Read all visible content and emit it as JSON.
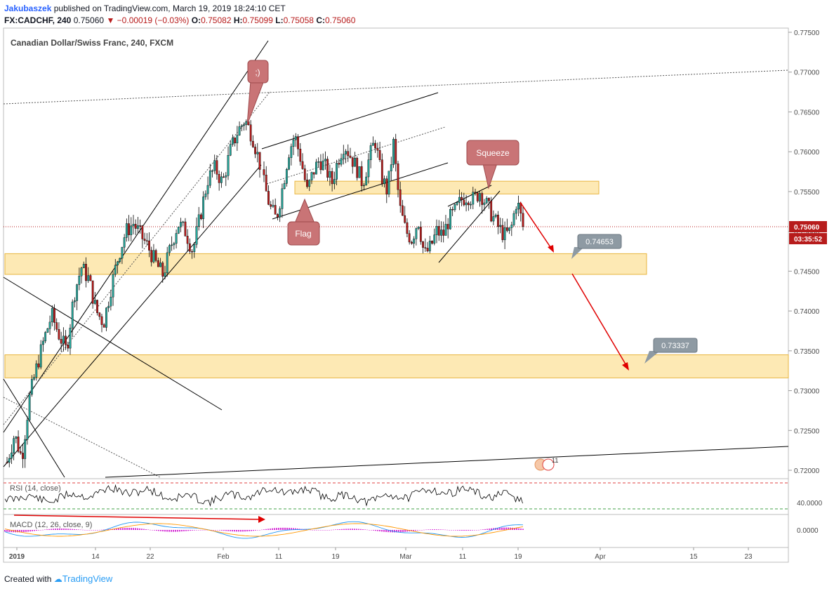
{
  "header": {
    "author": "Jakubaszek",
    "published_text": "published on TradingView.com, March 19, 2019 18:24:10 CET",
    "symbol": "FX:CADCHF, 240",
    "last": "0.75060",
    "change": "−0.00019 (−0.03%)",
    "o_label": "O:",
    "o_value": "0.75082",
    "h_label": "H:",
    "h_value": "0.75099",
    "l_label": "L:",
    "l_value": "0.75058",
    "c_label": "C:",
    "c_value": "0.75060"
  },
  "footer": {
    "created_with": "Created with",
    "brand": "TradingView"
  },
  "colors": {
    "up": "#26a69a",
    "down": "#b71c1c",
    "zone_fill": "#fde9b4",
    "zone_stroke": "#e8b53f",
    "callout": "#c97476",
    "arrow": "#e00000",
    "rsi": "#000000",
    "macd": "#2196f3",
    "signal": "#ff9800",
    "hist": "#cc00cc"
  },
  "chart_data": {
    "type": "candlestick",
    "title": "Canadian Dollar/Swiss Franc, 240, FXCM",
    "y_ticks": [
      "0.77500",
      "0.77000",
      "0.76500",
      "0.76000",
      "0.75500",
      "0.75000",
      "0.74500",
      "0.74000",
      "0.73500",
      "0.73000",
      "0.72500",
      "0.72000"
    ],
    "y_tick_values": [
      0.775,
      0.77,
      0.765,
      0.76,
      0.755,
      0.75,
      0.745,
      0.74,
      0.735,
      0.73,
      0.725,
      0.72
    ],
    "x_ticks": [
      "2019",
      "14",
      "22",
      "Feb",
      "11",
      "19",
      "Mar",
      "11",
      "19",
      "Apr",
      "15",
      "23"
    ],
    "last_price": "0.75060",
    "countdown": "03:35:52",
    "zones": [
      [
        0.7547,
        0.7563
      ],
      [
        0.7446,
        0.7472
      ],
      [
        0.7316,
        0.7345
      ]
    ],
    "price_path": [
      [
        0.721,
        0.7245,
        0.7215,
        0.729,
        0.733,
        0.7365,
        0.7395,
        0.737,
        0.735,
        0.742,
        0.7455,
        0.744,
        0.74,
        0.7385,
        0.743,
        0.747,
        0.75,
        0.751,
        0.7495,
        0.748,
        0.746,
        0.7445,
        0.748,
        0.751,
        0.75,
        0.7475,
        0.752,
        0.7565,
        0.758,
        0.756,
        0.76,
        0.7625,
        0.764,
        0.762,
        0.7585
      ],
      [
        0.756,
        0.753,
        0.7515,
        0.7555,
        0.76,
        0.762,
        0.759,
        0.755,
        0.7575,
        0.759,
        0.758,
        0.756,
        0.759,
        0.761,
        0.7595,
        0.758,
        0.756,
        0.759,
        0.7615,
        0.757,
        0.755,
        0.761,
        0.753,
        0.75,
        0.749,
        0.7515,
        0.747,
        0.748,
        0.75,
        0.7495,
        0.7515,
        0.7525,
        0.754,
        0.7545,
        0.754,
        0.755,
        0.7535,
        0.752,
        0.7505,
        0.7495,
        0.75,
        0.754,
        0.7506
      ]
    ],
    "annotations": [
      {
        "text": ";)"
      },
      {
        "text": "Flag"
      },
      {
        "text": "Squeeze"
      },
      {
        "text": "0.74653"
      },
      {
        "text": "0.73337"
      }
    ],
    "rsi": {
      "label": "RSI (14, close)",
      "tick": "40.0000"
    },
    "macd": {
      "label": "MACD (12, 26, close, 9)",
      "tick": "0.0000"
    },
    "event_badge": "11"
  }
}
